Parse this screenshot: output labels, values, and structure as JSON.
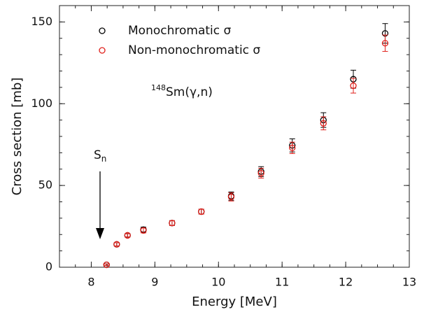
{
  "chart_data": {
    "type": "scatter",
    "xlabel": "Energy [MeV]",
    "ylabel": "Cross section [mb]",
    "reaction_mass": "148",
    "reaction": "Sm(γ,n)",
    "threshold_symbol": "S",
    "threshold_subscript": "n",
    "x": [
      8.24,
      8.4,
      8.57,
      8.82,
      9.27,
      9.73,
      10.2,
      10.67,
      11.16,
      11.65,
      12.12,
      12.62
    ],
    "series": [
      {
        "name": "Monochromatic σ",
        "color": "#000000",
        "values": [
          1.5,
          14,
          19.5,
          23,
          27,
          34,
          43.5,
          58.5,
          74.5,
          90,
          115,
          143
        ],
        "errors": [
          0.5,
          1,
          1,
          1.5,
          1.5,
          1.5,
          2.5,
          3,
          4,
          4.5,
          5.5,
          6
        ]
      },
      {
        "name": "Non-monochromatic σ",
        "color": "#e0201b",
        "values": [
          1.5,
          14,
          19.5,
          22.5,
          27,
          34,
          43,
          57.5,
          73,
          88,
          111,
          137
        ],
        "errors": [
          0.5,
          1,
          1,
          1.5,
          1.5,
          1.5,
          2.5,
          3,
          3.5,
          4,
          4.5,
          5
        ]
      }
    ],
    "xlim": [
      7.5,
      13
    ],
    "xticks": [
      8,
      9,
      10,
      11,
      12,
      13
    ],
    "ylim": [
      0,
      160
    ],
    "yticks": [
      0,
      50,
      100,
      150
    ],
    "legend": "upper left"
  }
}
